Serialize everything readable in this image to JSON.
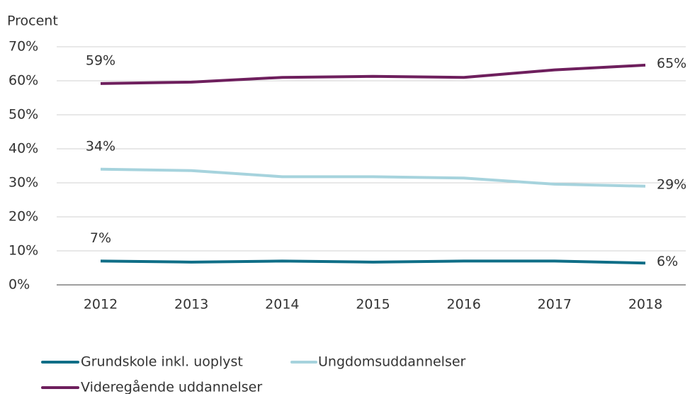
{
  "chart_data": {
    "type": "line",
    "y_axis_label": "Procent",
    "categories": [
      "2012",
      "2013",
      "2014",
      "2015",
      "2016",
      "2017",
      "2018"
    ],
    "series": [
      {
        "name": "Grundskole inkl. uoplyst",
        "color": "#0f6e87",
        "values": [
          7,
          6.7,
          7,
          6.7,
          7,
          7,
          6.4
        ],
        "value_labels": [
          "7%",
          null,
          null,
          null,
          null,
          null,
          "6%"
        ]
      },
      {
        "name": "Ungdomsuddannelser",
        "color": "#a6d3dd",
        "values": [
          34,
          33.6,
          31.8,
          31.8,
          31.4,
          29.6,
          29
        ],
        "value_labels": [
          "34%",
          null,
          null,
          null,
          null,
          null,
          "29%"
        ]
      },
      {
        "name": "Videregående uddannelser",
        "color": "#6e1f5d",
        "values": [
          59.2,
          59.6,
          61,
          61.3,
          61,
          63.2,
          64.6
        ],
        "value_labels": [
          "59%",
          null,
          null,
          null,
          null,
          null,
          "65%"
        ]
      }
    ],
    "ylim": [
      0,
      70
    ],
    "yticks": [
      {
        "value": 0,
        "label": "0%"
      },
      {
        "value": 10,
        "label": "10%"
      },
      {
        "value": 20,
        "label": "20%"
      },
      {
        "value": 30,
        "label": "30%"
      },
      {
        "value": 40,
        "label": "40%"
      },
      {
        "value": 50,
        "label": "50%"
      },
      {
        "value": 60,
        "label": "60%"
      },
      {
        "value": 70,
        "label": "70%"
      }
    ],
    "grid": true,
    "legend": "bottom"
  }
}
